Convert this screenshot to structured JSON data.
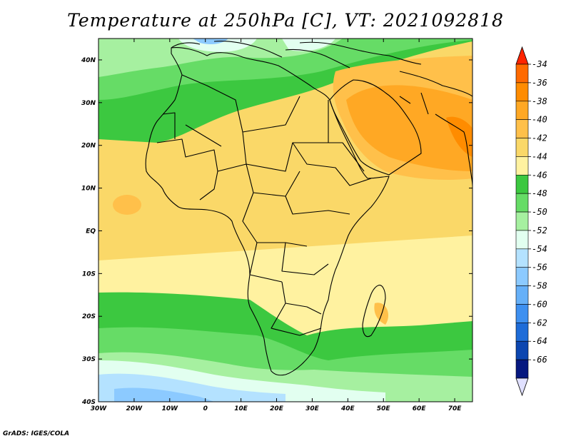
{
  "title": "Temperature at 250hPa [C], VT: 2021092818",
  "credit": "GrADS: IGES/COLA",
  "map": {
    "lon_ticks": [
      "30W",
      "20W",
      "10W",
      "0",
      "10E",
      "20E",
      "30E",
      "40E",
      "50E",
      "60E",
      "70E"
    ],
    "lat_ticks": [
      "40N",
      "30N",
      "20N",
      "10N",
      "EQ",
      "10S",
      "20S",
      "30S",
      "40S"
    ]
  },
  "colorbar": {
    "labels": [
      "-34",
      "-36",
      "-38",
      "-40",
      "-42",
      "-44",
      "-46",
      "-48",
      "-50",
      "-52",
      "-54",
      "-56",
      "-58",
      "-60",
      "-62",
      "-64",
      "-66"
    ],
    "colors": [
      "#ff6a00",
      "#ff8c00",
      "#ffa824",
      "#ffc04a",
      "#fad868",
      "#fff2a0",
      "#3cc840",
      "#66dc66",
      "#a6f0a0",
      "#e2fff0",
      "#b4e2ff",
      "#8ccaff",
      "#66b0f8",
      "#3e90f0",
      "#1e6cd8",
      "#0c46b0",
      "#061880"
    ],
    "top_arrow_color": "#ff2400",
    "bottom_arrow_color": "#e0e0ff"
  }
}
